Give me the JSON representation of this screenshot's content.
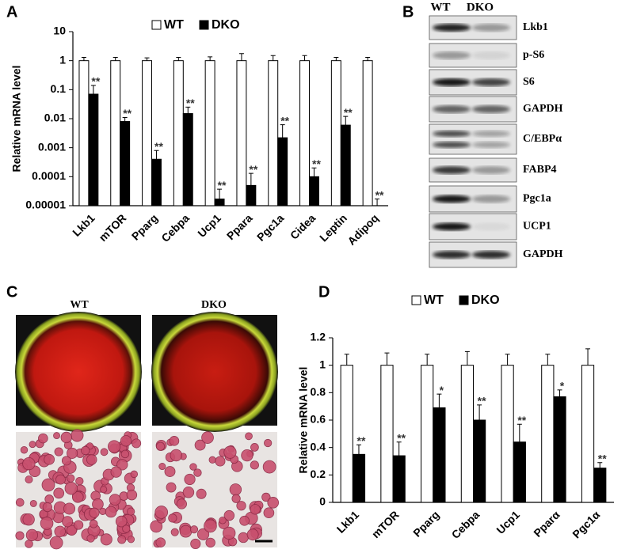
{
  "chart_data": [
    {
      "type": "bar",
      "label": "A",
      "ylabel": "Relative mRNA level",
      "log_scale": true,
      "categories": [
        "Lkb1",
        "mTOR",
        "Pparg",
        "Cebpa",
        "Ucp1",
        "Ppara",
        "Pgc1a",
        "Cidea",
        "Leptin",
        "Adipoq"
      ],
      "series": [
        {
          "name": "WT",
          "color": "#ffffff",
          "values": [
            1,
            1,
            1,
            1,
            1,
            1,
            1,
            1,
            1,
            1
          ],
          "errors": [
            0.3,
            0.3,
            0.25,
            0.3,
            0.35,
            0.75,
            0.5,
            0.5,
            0.3,
            0.3
          ]
        },
        {
          "name": "DKO",
          "color": "#000000",
          "values": [
            0.07,
            0.008,
            0.0004,
            0.015,
            1.7e-05,
            5e-05,
            0.0022,
            0.0001,
            0.006,
            1e-05
          ],
          "errors": [
            0.07,
            0.003,
            0.0004,
            0.01,
            2e-05,
            8e-05,
            0.004,
            0.0001,
            0.006,
            7e-06
          ],
          "significance": [
            "**",
            "**",
            "**",
            "**",
            "**",
            "**",
            "**",
            "**",
            "**",
            "**"
          ]
        }
      ],
      "ylim": [
        1e-05,
        10
      ],
      "yticks": [
        10,
        1,
        0.1,
        0.01,
        0.001,
        0.0001,
        {
          "value": 1e-05,
          "label": "0.00001"
        }
      ]
    },
    {
      "type": "bar",
      "label": "D",
      "ylabel": "Relative mRNA level",
      "log_scale": false,
      "categories": [
        "Lkb1",
        "mTOR",
        "Pparg",
        "Cebpa",
        "Ucp1",
        "Pparα",
        "Pgc1α"
      ],
      "series": [
        {
          "name": "WT",
          "color": "#ffffff",
          "values": [
            1,
            1,
            1,
            1,
            1,
            1,
            1
          ],
          "errors": [
            0.08,
            0.09,
            0.08,
            0.1,
            0.08,
            0.08,
            0.12
          ]
        },
        {
          "name": "DKO",
          "color": "#000000",
          "values": [
            0.35,
            0.34,
            0.69,
            0.6,
            0.44,
            0.77,
            0.25
          ],
          "errors": [
            0.07,
            0.1,
            0.1,
            0.11,
            0.13,
            0.05,
            0.04
          ],
          "significance": [
            "**",
            "**",
            "*",
            "**",
            "**",
            "*",
            "**"
          ]
        }
      ],
      "ylim": [
        0,
        1.2
      ],
      "yticks": [
        0,
        0.2,
        0.4,
        0.6,
        0.8,
        1,
        1.2
      ]
    }
  ],
  "blot": {
    "label": "B",
    "columns": [
      "WT",
      "DKO"
    ],
    "bands": [
      "Lkb1",
      "p-S6",
      "S6",
      "GAPDH",
      "C/EBPα",
      "FABP4",
      "Pgc1a",
      "UCP1",
      "GAPDH"
    ]
  },
  "images": {
    "label": "C",
    "columns": [
      "WT",
      "DKO"
    ]
  }
}
